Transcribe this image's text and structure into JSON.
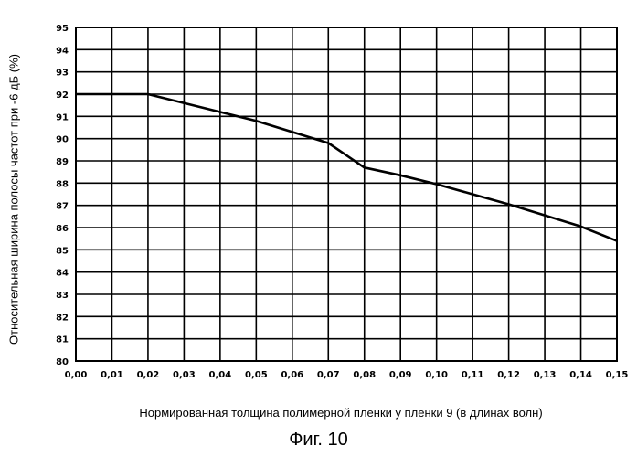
{
  "chart_data": {
    "type": "line",
    "title": "",
    "xlabel": "Нормированная толщина полимерной пленки у пленки 9 (в длинах волн)",
    "ylabel": "Относительная ширина полосы частот при -6 дБ (%)",
    "xlim": [
      0.0,
      0.15
    ],
    "ylim": [
      80,
      95
    ],
    "x_ticks": [
      "0,00",
      "0,01",
      "0,02",
      "0,03",
      "0,04",
      "0,05",
      "0,06",
      "0,07",
      "0,08",
      "0,09",
      "0,10",
      "0,11",
      "0,12",
      "0,13",
      "0,14",
      "0,15"
    ],
    "y_ticks": [
      "80",
      "81",
      "82",
      "83",
      "84",
      "85",
      "86",
      "87",
      "88",
      "89",
      "90",
      "91",
      "92",
      "93",
      "94",
      "95"
    ],
    "grid": true,
    "legend": "none",
    "series": [
      {
        "x": [
          0.0,
          0.01,
          0.02,
          0.03,
          0.04,
          0.05,
          0.06,
          0.07,
          0.08,
          0.09,
          0.1,
          0.11,
          0.12,
          0.13,
          0.14,
          0.15
        ],
        "values": [
          92.0,
          92.0,
          92.0,
          91.6,
          91.2,
          90.8,
          90.3,
          89.8,
          88.7,
          88.35,
          87.95,
          87.5,
          87.05,
          86.55,
          86.05,
          85.4
        ]
      }
    ],
    "colors": {
      "line": "#000000",
      "grid": "#000000",
      "background": "#ffffff"
    }
  },
  "caption": "Фиг. 10"
}
